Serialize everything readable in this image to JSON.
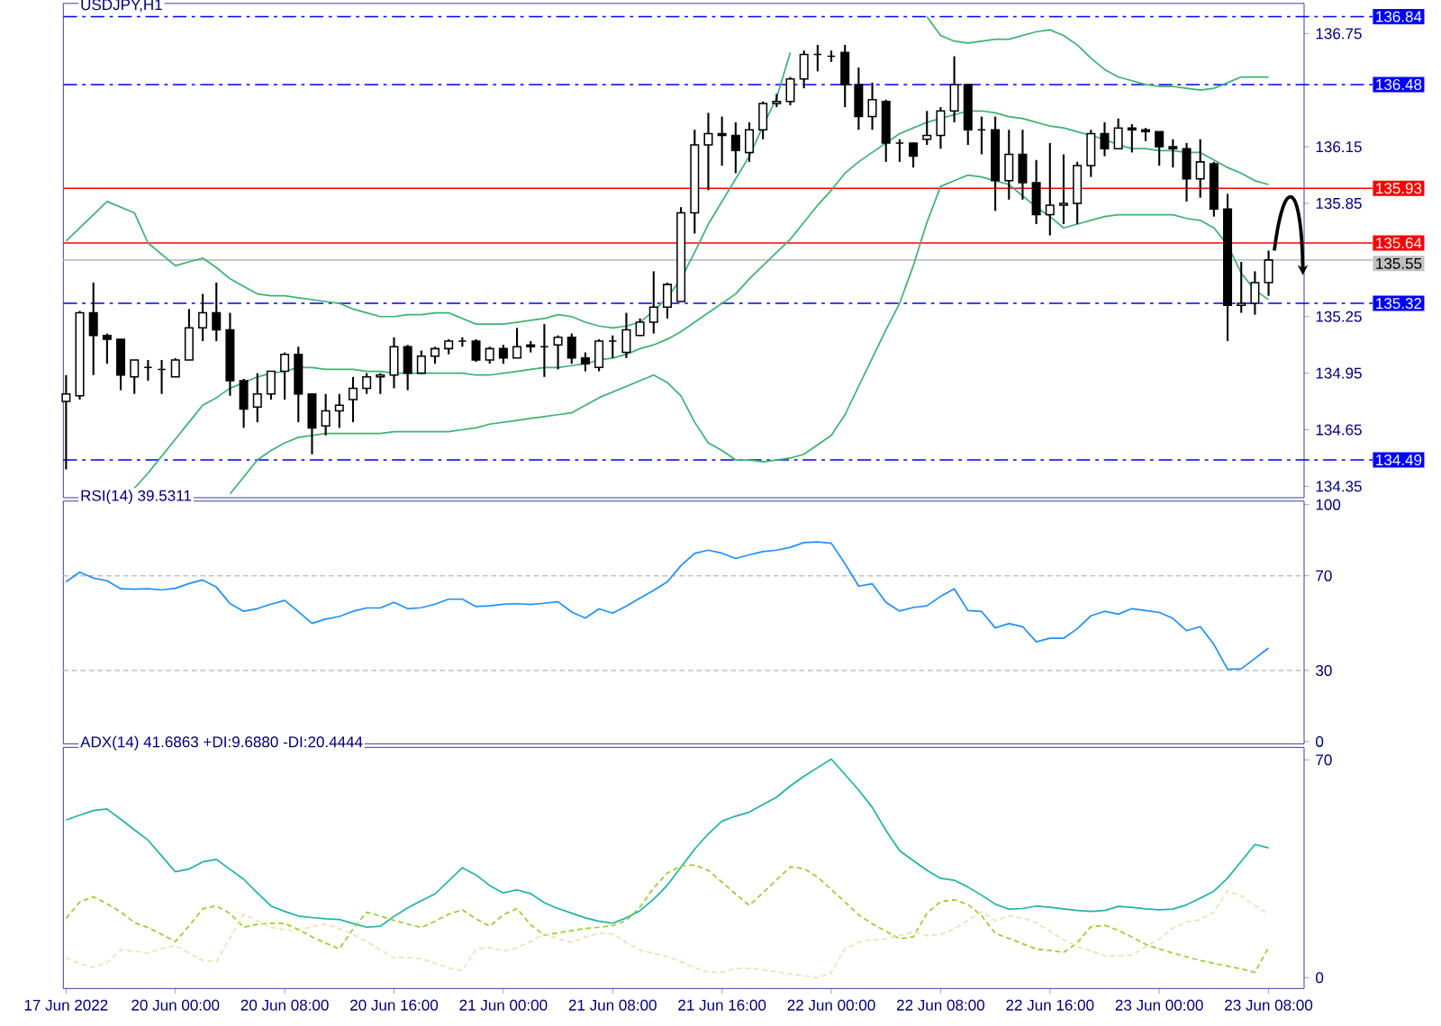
{
  "chart_data": [
    {
      "type": "candlestick",
      "title": "USDJPY,H1",
      "color": "#000000",
      "tick_labels": "y",
      "ohlc": [
        [
          134.8,
          134.94,
          134.44,
          134.84
        ],
        [
          134.83,
          135.28,
          134.81,
          135.27
        ],
        [
          135.27,
          135.43,
          134.94,
          135.15
        ],
        [
          135.15,
          135.16,
          135.0,
          135.13
        ],
        [
          135.13,
          135.13,
          134.86,
          134.94
        ],
        [
          134.93,
          135.02,
          134.84,
          135.02
        ],
        [
          134.98,
          135.02,
          134.91,
          134.98
        ],
        [
          134.97,
          135.02,
          134.84,
          134.97
        ],
        [
          134.93,
          135.03,
          134.93,
          135.02
        ],
        [
          135.02,
          135.29,
          135.02,
          135.19
        ],
        [
          135.19,
          135.37,
          135.12,
          135.27
        ],
        [
          135.27,
          135.43,
          135.12,
          135.18
        ],
        [
          135.18,
          135.27,
          134.83,
          134.91
        ],
        [
          134.91,
          134.92,
          134.66,
          134.76
        ],
        [
          134.77,
          134.95,
          134.69,
          134.84
        ],
        [
          134.84,
          134.96,
          134.81,
          134.96
        ],
        [
          134.96,
          135.06,
          134.81,
          135.05
        ],
        [
          135.05,
          135.09,
          134.69,
          134.84
        ],
        [
          134.84,
          134.84,
          134.52,
          134.66
        ],
        [
          134.67,
          134.84,
          134.62,
          134.75
        ],
        [
          134.75,
          134.84,
          134.66,
          134.78
        ],
        [
          134.81,
          134.93,
          134.69,
          134.87
        ],
        [
          134.87,
          134.95,
          134.84,
          134.93
        ],
        [
          134.93,
          134.95,
          134.84,
          134.94
        ],
        [
          134.94,
          135.14,
          134.87,
          135.09
        ],
        [
          135.09,
          135.1,
          134.86,
          134.95
        ],
        [
          134.95,
          135.07,
          134.95,
          135.04
        ],
        [
          135.04,
          135.09,
          135.0,
          135.08
        ],
        [
          135.08,
          135.13,
          135.05,
          135.12
        ],
        [
          135.12,
          135.14,
          135.09,
          135.12
        ],
        [
          135.12,
          135.13,
          135.01,
          135.02
        ],
        [
          135.02,
          135.09,
          135.0,
          135.08
        ],
        [
          135.08,
          135.1,
          135.0,
          135.03
        ],
        [
          135.03,
          135.19,
          135.03,
          135.09
        ],
        [
          135.1,
          135.12,
          135.06,
          135.09
        ],
        [
          135.09,
          135.21,
          134.93,
          135.09
        ],
        [
          135.1,
          135.15,
          134.97,
          135.14
        ],
        [
          135.14,
          135.16,
          135.0,
          135.03
        ],
        [
          135.03,
          135.06,
          134.96,
          135.0
        ],
        [
          134.98,
          135.13,
          134.96,
          135.12
        ],
        [
          135.12,
          135.15,
          135.03,
          135.12
        ],
        [
          135.06,
          135.27,
          135.03,
          135.18
        ],
        [
          135.15,
          135.24,
          135.15,
          135.22
        ],
        [
          135.22,
          135.49,
          135.16,
          135.3
        ],
        [
          135.3,
          135.43,
          135.24,
          135.42
        ],
        [
          135.33,
          135.83,
          135.33,
          135.8
        ],
        [
          135.8,
          136.24,
          135.69,
          136.16
        ],
        [
          136.16,
          136.33,
          135.92,
          136.22
        ],
        [
          136.22,
          136.31,
          136.05,
          136.21
        ],
        [
          136.21,
          136.28,
          136.01,
          136.13
        ],
        [
          136.12,
          136.28,
          136.07,
          136.24
        ],
        [
          136.24,
          136.39,
          136.19,
          136.38
        ],
        [
          136.38,
          136.43,
          136.36,
          136.39
        ],
        [
          136.39,
          136.52,
          136.37,
          136.51
        ],
        [
          136.51,
          136.66,
          136.46,
          136.64
        ],
        [
          136.64,
          136.69,
          136.55,
          136.64
        ],
        [
          136.63,
          136.66,
          136.6,
          136.63
        ],
        [
          136.65,
          136.69,
          136.36,
          136.48
        ],
        [
          136.48,
          136.57,
          136.24,
          136.31
        ],
        [
          136.31,
          136.49,
          136.24,
          136.4
        ],
        [
          136.39,
          136.4,
          136.07,
          136.17
        ],
        [
          136.17,
          136.19,
          136.07,
          136.17
        ],
        [
          136.17,
          136.17,
          136.04,
          136.1
        ],
        [
          136.19,
          136.34,
          136.16,
          136.21
        ],
        [
          136.21,
          136.36,
          136.14,
          136.34
        ],
        [
          136.34,
          136.63,
          136.28,
          136.48
        ],
        [
          136.48,
          136.48,
          136.16,
          136.24
        ],
        [
          136.24,
          136.31,
          136.11,
          136.24
        ],
        [
          136.24,
          136.31,
          135.81,
          135.97
        ],
        [
          135.97,
          136.24,
          135.87,
          136.11
        ],
        [
          136.11,
          136.24,
          135.87,
          135.96
        ],
        [
          135.96,
          136.08,
          135.74,
          135.79
        ],
        [
          135.79,
          136.17,
          135.68,
          135.84
        ],
        [
          135.84,
          136.11,
          135.74,
          135.85
        ],
        [
          135.85,
          136.07,
          135.74,
          136.05
        ],
        [
          136.05,
          136.24,
          135.99,
          136.22
        ],
        [
          136.22,
          136.28,
          136.1,
          136.14
        ],
        [
          136.14,
          136.3,
          136.14,
          136.25
        ],
        [
          136.25,
          136.27,
          136.12,
          136.24
        ],
        [
          136.24,
          136.25,
          136.18,
          136.23
        ],
        [
          136.23,
          136.23,
          136.05,
          136.15
        ],
        [
          136.15,
          136.19,
          136.04,
          136.14
        ],
        [
          136.14,
          136.17,
          135.86,
          135.98
        ],
        [
          135.98,
          136.19,
          135.88,
          136.07
        ],
        [
          136.06,
          136.07,
          135.78,
          135.82
        ],
        [
          135.82,
          135.9,
          135.12,
          135.31
        ],
        [
          135.31,
          135.54,
          135.27,
          135.32
        ],
        [
          135.32,
          135.49,
          135.26,
          135.43
        ],
        [
          135.43,
          135.6,
          135.36,
          135.55
        ]
      ],
      "series": [
        {
          "type": "line",
          "color": "#3cb371",
          "values": [
            135.65,
            135.72,
            135.79,
            135.86,
            135.83,
            135.8,
            135.64,
            135.58,
            135.52,
            135.54,
            135.56,
            135.51,
            135.45,
            135.41,
            135.37,
            135.36,
            135.36,
            135.35,
            135.34,
            135.33,
            135.32,
            135.29,
            135.27,
            135.25,
            135.25,
            135.26,
            135.26,
            135.27,
            135.27,
            135.24,
            135.21,
            135.21,
            135.21,
            135.22,
            135.23,
            135.24,
            135.26,
            135.25,
            135.22,
            135.2,
            135.19,
            135.2,
            135.22,
            135.28,
            135.35,
            135.45,
            135.59,
            135.74,
            135.86,
            135.98,
            136.1,
            136.26,
            136.41,
            136.65,
            null,
            null,
            null,
            null,
            null,
            null,
            null,
            null,
            null,
            136.84,
            136.74,
            136.71,
            136.7,
            136.71,
            136.72,
            136.72,
            136.74,
            136.76,
            136.77,
            136.74,
            136.69,
            136.62,
            136.56,
            136.52,
            136.5,
            136.48,
            136.47,
            136.47,
            136.46,
            136.45,
            136.46,
            136.49,
            136.52,
            136.52,
            136.52
          ]
        },
        {
          "type": "line",
          "color": "#3cb371",
          "values": [
            null,
            null,
            null,
            null,
            null,
            134.34,
            134.42,
            134.51,
            134.6,
            134.69,
            134.78,
            134.82,
            134.87,
            134.9,
            134.93,
            134.95,
            134.96,
            134.98,
            134.98,
            134.97,
            134.97,
            134.97,
            134.96,
            134.96,
            134.95,
            134.95,
            134.95,
            134.95,
            134.95,
            134.95,
            134.94,
            134.94,
            134.95,
            134.96,
            134.97,
            134.98,
            134.98,
            134.99,
            135.0,
            135.02,
            135.03,
            135.05,
            135.08,
            135.1,
            135.13,
            135.17,
            135.22,
            135.27,
            135.32,
            135.37,
            135.45,
            135.52,
            135.59,
            135.66,
            135.75,
            135.84,
            135.92,
            136.01,
            136.07,
            136.12,
            136.17,
            136.22,
            136.25,
            136.28,
            136.3,
            136.32,
            136.34,
            136.34,
            136.33,
            136.31,
            136.3,
            136.28,
            136.26,
            136.25,
            136.23,
            136.21,
            136.19,
            136.16,
            136.14,
            136.14,
            136.13,
            136.13,
            136.12,
            136.12,
            136.08,
            136.04,
            136.01,
            135.97,
            135.95
          ]
        },
        {
          "type": "line",
          "color": "#3cb371",
          "values": [
            null,
            null,
            null,
            null,
            null,
            null,
            null,
            null,
            null,
            null,
            null,
            null,
            134.31,
            134.4,
            134.49,
            134.54,
            134.58,
            134.61,
            134.62,
            134.63,
            134.63,
            134.63,
            134.63,
            134.63,
            134.64,
            134.64,
            134.64,
            134.64,
            134.64,
            134.65,
            134.66,
            134.68,
            134.69,
            134.7,
            134.71,
            134.72,
            134.73,
            134.74,
            134.78,
            134.82,
            134.85,
            134.88,
            134.91,
            134.94,
            134.9,
            134.83,
            134.69,
            134.58,
            134.54,
            134.49,
            134.49,
            134.48,
            134.49,
            134.5,
            134.52,
            134.57,
            134.62,
            134.73,
            134.88,
            135.03,
            135.18,
            135.32,
            135.52,
            135.75,
            135.94,
            135.97,
            136.0,
            135.99,
            135.97,
            135.95,
            135.89,
            135.83,
            135.78,
            135.72,
            135.74,
            135.76,
            135.78,
            135.79,
            135.79,
            135.79,
            135.79,
            135.79,
            135.77,
            135.76,
            135.72,
            135.63,
            135.48,
            135.39,
            135.34
          ]
        }
      ],
      "ylim": [
        134.29,
        136.91
      ],
      "yticks": [
        134.35,
        134.65,
        134.95,
        135.25,
        135.85,
        136.15,
        136.75
      ],
      "ref_lines": [
        {
          "axis": "y",
          "value": 136.84,
          "label": "136.84",
          "color": "#0000ff",
          "line_style": "dashdot"
        },
        {
          "axis": "y",
          "value": 136.48,
          "label": "136.48",
          "color": "#0000ff",
          "line_style": "dashdot"
        },
        {
          "axis": "y",
          "value": 135.93,
          "label": "135.93",
          "color": "#ff0000",
          "line_style": "solid"
        },
        {
          "axis": "y",
          "value": 135.64,
          "label": "135.64",
          "color": "#ff0000",
          "line_style": "solid"
        },
        {
          "axis": "y",
          "value": 135.55,
          "label": "135.55",
          "color": "#c0c0c0",
          "line_style": "solid"
        },
        {
          "axis": "y",
          "value": 135.32,
          "label": "135.32",
          "color": "#0000ff",
          "line_style": "dashdot"
        },
        {
          "axis": "y",
          "value": 134.49,
          "label": "134.49",
          "color": "#0000ff",
          "line_style": "dashdot"
        }
      ]
    },
    {
      "type": "line",
      "title": "RSI(14) 39.5311",
      "tick_labels": "y",
      "series": [
        {
          "color": "#1e90ff",
          "values": [
            67.4,
            71.5,
            69.0,
            67.9,
            64.5,
            64.3,
            64.5,
            64.0,
            64.7,
            66.7,
            68.2,
            65.2,
            58.2,
            55.0,
            56.1,
            58.0,
            59.6,
            54.8,
            49.9,
            51.7,
            52.8,
            55.0,
            56.4,
            56.4,
            58.8,
            56.1,
            56.5,
            58.0,
            60.1,
            60.1,
            57.0,
            57.3,
            58.0,
            58.2,
            57.9,
            58.4,
            59.0,
            54.7,
            52.1,
            56.0,
            54.2,
            57.2,
            60.6,
            63.8,
            67.4,
            74.3,
            79.4,
            80.8,
            79.5,
            77.3,
            78.8,
            80.2,
            80.8,
            82.0,
            84.0,
            84.3,
            83.7,
            75.1,
            65.6,
            66.6,
            58.8,
            55.1,
            56.6,
            57.3,
            61.3,
            64.5,
            55.3,
            54.9,
            48.0,
            49.8,
            48.5,
            42.1,
            43.6,
            43.6,
            47.6,
            53.1,
            55.0,
            53.8,
            56.1,
            55.3,
            54.5,
            52.0,
            46.8,
            48.5,
            41.0,
            30.5,
            30.7,
            35.1,
            39.5
          ]
        }
      ],
      "ylim": [
        -1,
        101.5
      ],
      "yticks": [
        0,
        30,
        70,
        100
      ],
      "ref_lines": [
        {
          "axis": "y",
          "value": 70,
          "color": "#c0c0c0",
          "line_style": "dashed"
        },
        {
          "axis": "y",
          "value": 30,
          "color": "#c0c0c0",
          "line_style": "dashed"
        }
      ]
    },
    {
      "type": "line",
      "title": "ADX(14) 41.6863 +DI:9.6880 -DI:20.4444",
      "categories": [
        "17 Jun 2022",
        null,
        null,
        null,
        null,
        null,
        null,
        null,
        "20 Jun 00:00",
        null,
        null,
        null,
        null,
        null,
        null,
        null,
        "20 Jun 08:00",
        null,
        null,
        null,
        null,
        null,
        null,
        null,
        "20 Jun 16:00",
        null,
        null,
        null,
        null,
        null,
        null,
        null,
        "21 Jun 00:00",
        null,
        null,
        null,
        null,
        null,
        null,
        null,
        "21 Jun 08:00",
        null,
        null,
        null,
        null,
        null,
        null,
        null,
        "21 Jun 16:00",
        null,
        null,
        null,
        null,
        null,
        null,
        null,
        "22 Jun 00:00",
        null,
        null,
        null,
        null,
        null,
        null,
        null,
        "22 Jun 08:00",
        null,
        null,
        null,
        null,
        null,
        null,
        null,
        "22 Jun 16:00",
        null,
        null,
        null,
        null,
        null,
        null,
        null,
        "23 Jun 00:00",
        null,
        null,
        null,
        null,
        null,
        null,
        null,
        "23 Jun 08:00"
      ],
      "series": [
        {
          "color": "#20b2aa",
          "line_style": "solid",
          "values": [
            50.7,
            52.2,
            53.7,
            54.2,
            50.9,
            47.5,
            44.2,
            39.1,
            34.0,
            34.9,
            37.2,
            38.0,
            34.8,
            31.6,
            27.2,
            23.0,
            21.3,
            19.8,
            19.3,
            18.9,
            18.7,
            17.4,
            16.2,
            16.5,
            19.7,
            22.4,
            24.7,
            26.9,
            31.1,
            35.3,
            33.0,
            29.6,
            27.2,
            28.2,
            27.0,
            24.1,
            22.2,
            20.7,
            19.2,
            18.1,
            17.5,
            19.2,
            21.5,
            25.2,
            29.7,
            35.5,
            41.3,
            46.2,
            50.3,
            51.9,
            53.2,
            55.6,
            58.0,
            61.6,
            64.7,
            67.5,
            70.2,
            65.3,
            60.3,
            54.7,
            47.3,
            40.8,
            37.6,
            34.5,
            31.9,
            31.3,
            29.1,
            26.5,
            23.6,
            22.0,
            22.2,
            23.0,
            22.6,
            22.1,
            21.6,
            21.3,
            21.6,
            22.9,
            22.6,
            22.1,
            21.8,
            22.0,
            23.4,
            25.5,
            27.8,
            32.0,
            37.4,
            42.8,
            41.7
          ]
        },
        {
          "color": "#9acd32",
          "line_style": "dashed",
          "values": [
            19.0,
            24.3,
            26.0,
            23.7,
            21.1,
            17.7,
            16.1,
            13.9,
            11.6,
            16.6,
            22.1,
            23.1,
            20.6,
            16.2,
            17.1,
            17.5,
            17.4,
            15.5,
            13.1,
            11.1,
            9.2,
            15.6,
            21.0,
            19.8,
            18.4,
            17.2,
            16.1,
            18.1,
            20.4,
            21.8,
            18.9,
            16.5,
            20.2,
            22.2,
            17.0,
            13.6,
            14.4,
            15.1,
            15.8,
            16.2,
            16.7,
            18.3,
            22.7,
            28.8,
            33.6,
            35.9,
            36.2,
            34.5,
            30.7,
            26.9,
            23.2,
            27.3,
            31.4,
            35.6,
            35.0,
            32.3,
            28.3,
            24.3,
            20.2,
            17.3,
            14.9,
            12.5,
            13.1,
            20.7,
            24.4,
            25.0,
            23.5,
            19.9,
            14.2,
            12.6,
            10.9,
            9.2,
            8.7,
            8.1,
            11.2,
            16.4,
            16.8,
            15.2,
            13.0,
            10.7,
            9.2,
            7.9,
            6.7,
            5.5,
            4.6,
            3.7,
            2.8,
            1.7,
            9.7
          ]
        },
        {
          "color": "#f5deb3",
          "line_style": "dashed",
          "values": [
            6.4,
            4.5,
            3.3,
            4.8,
            8.9,
            8.5,
            7.9,
            9.3,
            10.3,
            7.9,
            5.5,
            5.1,
            12.8,
            20.4,
            18.2,
            16.1,
            15.4,
            15.1,
            16.5,
            17.2,
            15.7,
            13.9,
            11.5,
            8.9,
            6.4,
            6.4,
            6.1,
            4.6,
            3.1,
            2.2,
            9.2,
            9.7,
            8.5,
            9.6,
            11.6,
            14.1,
            12.5,
            11.3,
            13.1,
            14.3,
            14.0,
            11.3,
            8.9,
            7.8,
            6.7,
            5.1,
            3.2,
            1.7,
            1.7,
            3.0,
            3.0,
            2.5,
            1.9,
            1.1,
            0.6,
            -0.1,
            1.6,
            9.2,
            11.4,
            12.2,
            12.5,
            13.5,
            14.7,
            13.5,
            13.9,
            15.7,
            18.4,
            21.2,
            18.3,
            19.9,
            19.2,
            17.6,
            14.9,
            12.2,
            10.0,
            8.6,
            7.0,
            7.1,
            7.2,
            10.0,
            12.4,
            15.9,
            17.9,
            18.6,
            21.1,
            27.9,
            26.2,
            23.2,
            20.4
          ]
        }
      ],
      "ylim": [
        -3.5,
        74
      ],
      "yticks": [
        0,
        70
      ]
    }
  ]
}
